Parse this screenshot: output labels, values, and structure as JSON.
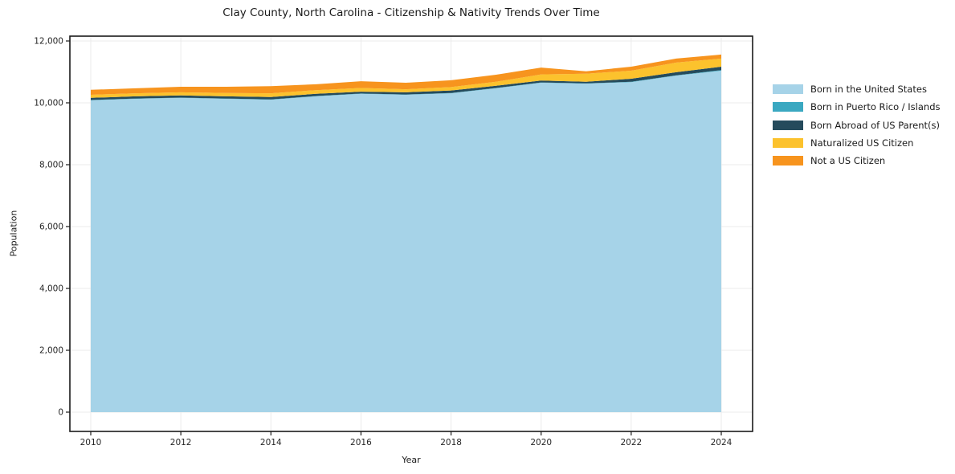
{
  "chart_data": {
    "type": "area",
    "stacked": true,
    "title": "Clay County, North Carolina - Citizenship & Nativity Trends Over Time",
    "xlabel": "Year",
    "ylabel": "Population",
    "x": [
      2010,
      2011,
      2012,
      2013,
      2014,
      2015,
      2016,
      2017,
      2018,
      2019,
      2020,
      2021,
      2022,
      2023,
      2024
    ],
    "series": [
      {
        "name": "Born in the United States",
        "color": "#a6d3e8",
        "values": [
          10080,
          10130,
          10160,
          10130,
          10100,
          10210,
          10290,
          10260,
          10310,
          10470,
          10650,
          10620,
          10670,
          10880,
          11040
        ]
      },
      {
        "name": "Born in Puerto Rico / Islands",
        "color": "#3aa8c1",
        "values": [
          10,
          10,
          10,
          10,
          10,
          10,
          10,
          10,
          10,
          10,
          10,
          10,
          10,
          10,
          20
        ]
      },
      {
        "name": "Born Abroad of US Parent(s)",
        "color": "#254b5c",
        "values": [
          70,
          70,
          70,
          70,
          80,
          70,
          60,
          70,
          80,
          70,
          60,
          50,
          100,
          100,
          110
        ]
      },
      {
        "name": "Naturalized US Citizen",
        "color": "#fcc22d",
        "values": [
          100,
          100,
          100,
          110,
          120,
          120,
          120,
          100,
          110,
          130,
          200,
          260,
          260,
          310,
          260
        ]
      },
      {
        "name": "Not a US Citizen",
        "color": "#f7941e",
        "values": [
          160,
          160,
          180,
          200,
          230,
          190,
          220,
          210,
          220,
          230,
          220,
          80,
          130,
          130,
          130
        ]
      }
    ],
    "xlim": [
      2010,
      2024
    ],
    "ylim": [
      0,
      12000
    ],
    "xticks": [
      2010,
      2012,
      2014,
      2016,
      2018,
      2020,
      2022,
      2024
    ],
    "yticks": [
      0,
      2000,
      4000,
      6000,
      8000,
      10000,
      12000
    ],
    "grid": true,
    "legend_position": "right",
    "colors": {
      "spine": "#1a1a1a",
      "grid": "#ebebeb",
      "tick_label": "#262626",
      "background": "#ffffff"
    }
  }
}
